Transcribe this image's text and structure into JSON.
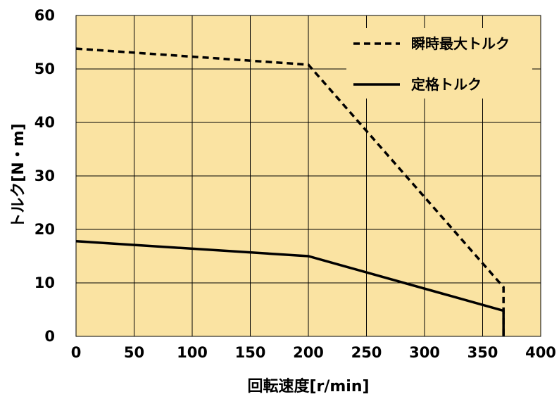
{
  "chart_data": {
    "type": "line",
    "xlabel": "回転速度[r/min]",
    "ylabel": "トルク[N・m]",
    "xlim": [
      0,
      400
    ],
    "ylim": [
      0,
      60
    ],
    "xticks": [
      0,
      50,
      100,
      150,
      200,
      250,
      300,
      350,
      400
    ],
    "yticks": [
      0,
      10,
      20,
      30,
      40,
      50,
      60
    ],
    "grid": true,
    "legend_position": "top-right",
    "background_color": "#FAE3A2",
    "series": [
      {
        "name": "瞬時最大トルク",
        "style": "dashed",
        "color": "#000000",
        "points": [
          [
            0,
            53.8
          ],
          [
            200,
            50.8
          ],
          [
            368,
            9.2
          ],
          [
            368,
            0
          ]
        ]
      },
      {
        "name": "定格トルク",
        "style": "solid",
        "color": "#000000",
        "points": [
          [
            0,
            17.8
          ],
          [
            200,
            15.0
          ],
          [
            368,
            4.8
          ],
          [
            368,
            0
          ]
        ]
      }
    ]
  }
}
